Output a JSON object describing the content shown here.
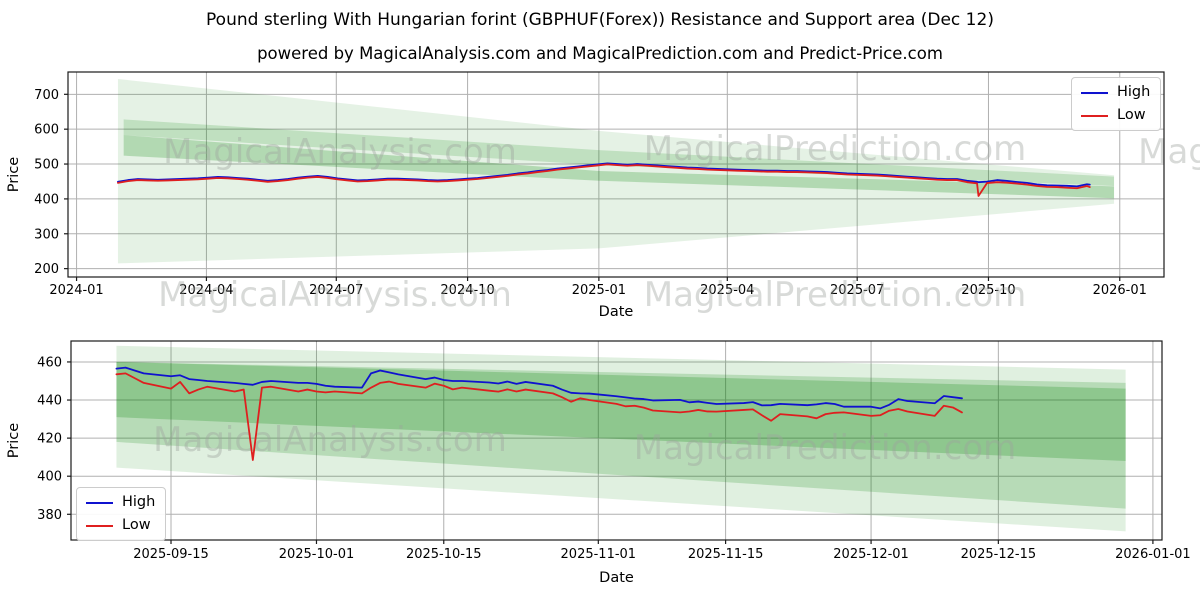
{
  "title": "Pound sterling With Hungarian forint (GBPHUF(Forex)) Resistance and Support area (Dec 12)",
  "subtitle": "powered by MagicalAnalysis.com and MagicalPrediction.com and Predict-Price.com",
  "legend": {
    "high_label": "High",
    "low_label": "Low"
  },
  "colors": {
    "high": "#0f12cf",
    "low": "#df1f1f",
    "band": "#008000",
    "grid": "#b0b0b0",
    "spine": "#1a1a1a",
    "watermark_text": "#9ea39e"
  },
  "watermarks": [
    "MagicalAnalysis.com",
    "MagicalPrediction.com"
  ],
  "chart_data": [
    {
      "type": "line",
      "name": "full-history",
      "xlabel": "Date",
      "ylabel": "Price",
      "xlim": [
        "2023-12-26",
        "2026-02-01"
      ],
      "ylim": [
        176,
        764
      ],
      "grid": true,
      "legend_position": "upper-right",
      "x_ticks": [
        {
          "label": "2024-01",
          "date": "2024-01-01"
        },
        {
          "label": "2024-04",
          "date": "2024-04-01"
        },
        {
          "label": "2024-07",
          "date": "2024-07-01"
        },
        {
          "label": "2024-10",
          "date": "2024-10-01"
        },
        {
          "label": "2025-01",
          "date": "2025-01-01"
        },
        {
          "label": "2025-04",
          "date": "2025-04-01"
        },
        {
          "label": "2025-07",
          "date": "2025-07-01"
        },
        {
          "label": "2025-10",
          "date": "2025-10-01"
        },
        {
          "label": "2026-01",
          "date": "2026-01-01"
        }
      ],
      "y_ticks": [
        200,
        300,
        400,
        500,
        600,
        700
      ],
      "bands": [
        {
          "x": [
            "2024-01-30",
            "2025-01-01",
            "2025-12-28"
          ],
          "top": [
            744,
            595,
            468
          ],
          "bottom": [
            215,
            258,
            386
          ],
          "opacity": 0.1
        },
        {
          "x": [
            "2024-02-03",
            "2025-01-01",
            "2025-12-28"
          ],
          "top": [
            628,
            540,
            464
          ],
          "bottom": [
            583,
            497,
            437
          ],
          "opacity": 0.16
        },
        {
          "x": [
            "2024-02-03",
            "2025-01-01",
            "2025-12-28"
          ],
          "top": [
            583,
            480,
            436
          ],
          "bottom": [
            524,
            452,
            402
          ],
          "opacity": 0.22
        }
      ],
      "dates": [
        "2024-01-30",
        "2024-02-06",
        "2024-02-13",
        "2024-02-20",
        "2024-02-27",
        "2024-03-05",
        "2024-03-12",
        "2024-03-19",
        "2024-03-26",
        "2024-04-02",
        "2024-04-09",
        "2024-04-16",
        "2024-04-23",
        "2024-04-30",
        "2024-05-07",
        "2024-05-14",
        "2024-05-21",
        "2024-05-28",
        "2024-06-04",
        "2024-06-11",
        "2024-06-18",
        "2024-06-25",
        "2024-07-02",
        "2024-07-09",
        "2024-07-16",
        "2024-07-23",
        "2024-07-30",
        "2024-08-06",
        "2024-08-13",
        "2024-08-20",
        "2024-08-27",
        "2024-09-03",
        "2024-09-10",
        "2024-09-17",
        "2024-09-24",
        "2024-10-01",
        "2024-10-08",
        "2024-10-15",
        "2024-10-22",
        "2024-10-29",
        "2024-11-05",
        "2024-11-12",
        "2024-11-19",
        "2024-11-26",
        "2024-12-03",
        "2024-12-10",
        "2024-12-17",
        "2024-12-24",
        "2024-12-31",
        "2025-01-07",
        "2025-01-14",
        "2025-01-21",
        "2025-01-28",
        "2025-02-04",
        "2025-02-11",
        "2025-02-18",
        "2025-02-25",
        "2025-03-04",
        "2025-03-11",
        "2025-03-18",
        "2025-03-25",
        "2025-04-01",
        "2025-04-08",
        "2025-04-15",
        "2025-04-22",
        "2025-04-29",
        "2025-05-06",
        "2025-05-13",
        "2025-05-20",
        "2025-05-27",
        "2025-06-03",
        "2025-06-10",
        "2025-06-17",
        "2025-06-24",
        "2025-07-01",
        "2025-07-08",
        "2025-07-15",
        "2025-07-22",
        "2025-07-29",
        "2025-08-05",
        "2025-08-12",
        "2025-08-19",
        "2025-08-26",
        "2025-09-02",
        "2025-09-09",
        "2025-09-16",
        "2025-09-23",
        "2025-09-24",
        "2025-09-30",
        "2025-10-07",
        "2025-10-14",
        "2025-10-21",
        "2025-10-28",
        "2025-11-04",
        "2025-11-11",
        "2025-11-18",
        "2025-11-25",
        "2025-12-02",
        "2025-12-09",
        "2025-12-11"
      ],
      "series": [
        {
          "name": "High",
          "color": "high",
          "values": [
            449,
            454,
            457,
            456,
            455,
            456,
            457,
            458,
            459,
            461,
            463,
            462,
            460,
            458,
            455,
            452,
            454,
            457,
            461,
            464,
            466,
            463,
            459,
            456,
            453,
            454,
            456,
            458,
            458,
            457,
            456,
            454,
            453,
            454,
            456,
            458,
            460,
            463,
            466,
            469,
            473,
            476,
            480,
            483,
            487,
            490,
            493,
            496,
            499,
            502,
            500,
            498,
            500,
            498,
            496,
            494,
            492,
            490,
            489,
            487,
            486,
            485,
            484,
            483,
            482,
            481,
            481,
            480,
            480,
            479,
            478,
            477,
            475,
            473,
            472,
            471,
            470,
            468,
            466,
            464,
            462,
            460,
            458,
            457,
            457,
            452,
            449,
            448,
            449.5,
            454,
            451.5,
            448.5,
            446,
            441.5,
            439,
            438.5,
            437.5,
            436,
            442,
            441
          ]
        },
        {
          "name": "Low",
          "color": "low",
          "values": [
            446,
            451,
            454,
            453,
            452,
            453,
            454,
            455,
            456,
            458,
            460,
            459,
            457,
            455,
            452,
            449,
            451,
            454,
            458,
            461,
            463,
            460,
            456,
            453,
            450,
            451,
            453,
            455,
            455,
            454,
            453,
            451,
            450,
            451,
            453,
            455,
            457,
            460,
            463,
            466,
            470,
            473,
            477,
            480,
            484,
            487,
            490,
            493,
            496,
            499,
            497,
            495,
            497,
            495,
            493,
            491,
            489,
            487,
            486,
            484,
            483,
            482,
            481,
            480,
            479,
            478,
            478,
            477,
            477,
            476,
            475,
            474,
            472,
            470,
            469,
            468,
            467,
            465,
            463,
            461,
            459,
            457,
            455,
            454,
            454,
            448,
            444.5,
            408.5,
            445.5,
            448,
            446.5,
            444,
            441,
            437,
            434.5,
            434,
            432,
            430.5,
            437,
            434
          ]
        }
      ]
    },
    {
      "type": "line",
      "name": "recent-three-months",
      "xlabel": "Date",
      "ylabel": "Price",
      "xlim": [
        "2025-09-04",
        "2026-01-02"
      ],
      "ylim": [
        366.5,
        471
      ],
      "grid": true,
      "legend_position": "lower-left",
      "x_ticks": [
        {
          "label": "2025-09-15",
          "date": "2025-09-15"
        },
        {
          "label": "2025-10-01",
          "date": "2025-10-01"
        },
        {
          "label": "2025-10-15",
          "date": "2025-10-15"
        },
        {
          "label": "2025-11-01",
          "date": "2025-11-01"
        },
        {
          "label": "2025-11-15",
          "date": "2025-11-15"
        },
        {
          "label": "2025-12-01",
          "date": "2025-12-01"
        },
        {
          "label": "2025-12-15",
          "date": "2025-12-15"
        },
        {
          "label": "2026-01-01",
          "date": "2026-01-01"
        }
      ],
      "y_ticks": [
        380,
        400,
        420,
        440,
        460
      ],
      "bands": [
        {
          "x": [
            "2025-09-09",
            "2025-12-29"
          ],
          "top": [
            468.5,
            456
          ],
          "bottom": [
            404.5,
            371
          ],
          "opacity": 0.12
        },
        {
          "x": [
            "2025-09-09",
            "2025-12-29"
          ],
          "top": [
            460,
            449
          ],
          "bottom": [
            418,
            383
          ],
          "opacity": 0.18
        },
        {
          "x": [
            "2025-09-09",
            "2025-12-29"
          ],
          "top": [
            460,
            446
          ],
          "bottom": [
            431,
            408
          ],
          "opacity": 0.22
        }
      ],
      "dates": [
        "2025-09-09",
        "2025-09-10",
        "2025-09-11",
        "2025-09-12",
        "2025-09-15",
        "2025-09-16",
        "2025-09-17",
        "2025-09-18",
        "2025-09-19",
        "2025-09-22",
        "2025-09-23",
        "2025-09-24",
        "2025-09-25",
        "2025-09-26",
        "2025-09-29",
        "2025-09-30",
        "2025-10-01",
        "2025-10-02",
        "2025-10-03",
        "2025-10-06",
        "2025-10-07",
        "2025-10-08",
        "2025-10-09",
        "2025-10-10",
        "2025-10-13",
        "2025-10-14",
        "2025-10-15",
        "2025-10-16",
        "2025-10-17",
        "2025-10-20",
        "2025-10-21",
        "2025-10-22",
        "2025-10-23",
        "2025-10-24",
        "2025-10-27",
        "2025-10-28",
        "2025-10-29",
        "2025-10-30",
        "2025-10-31",
        "2025-11-03",
        "2025-11-04",
        "2025-11-05",
        "2025-11-06",
        "2025-11-07",
        "2025-11-10",
        "2025-11-11",
        "2025-11-12",
        "2025-11-13",
        "2025-11-14",
        "2025-11-17",
        "2025-11-18",
        "2025-11-19",
        "2025-11-20",
        "2025-11-21",
        "2025-11-24",
        "2025-11-25",
        "2025-11-26",
        "2025-11-27",
        "2025-11-28",
        "2025-12-01",
        "2025-12-02",
        "2025-12-03",
        "2025-12-04",
        "2025-12-05",
        "2025-12-08",
        "2025-12-09",
        "2025-12-10",
        "2025-12-11"
      ],
      "series": [
        {
          "name": "High",
          "color": "high",
          "values": [
            456.5,
            457,
            455.5,
            454,
            452.5,
            453,
            451,
            450.5,
            450,
            449,
            448.5,
            448,
            449.5,
            450,
            449,
            449,
            448.5,
            447.5,
            447,
            446.5,
            454,
            455.5,
            454.5,
            453.5,
            451,
            451.8,
            450.5,
            450,
            450,
            449.2,
            448.7,
            449.7,
            448.5,
            449.5,
            447.5,
            445.5,
            443.8,
            443.5,
            443.4,
            442,
            441.4,
            440.8,
            440.5,
            439.8,
            440.1,
            438.8,
            439.2,
            438.5,
            437.9,
            438.4,
            438.9,
            437.2,
            437.3,
            438,
            437.3,
            437.7,
            438.4,
            437.9,
            436.5,
            436.5,
            435.6,
            437.5,
            440.5,
            439.5,
            438.3,
            442.1,
            441.5,
            440.9
          ]
        },
        {
          "name": "Low",
          "color": "low",
          "values": [
            453.5,
            454,
            451.5,
            449,
            446,
            449.5,
            443.5,
            445.5,
            447,
            444.5,
            445.5,
            408.5,
            446.5,
            447,
            444.5,
            445.5,
            444.5,
            444,
            444.5,
            443.5,
            446.5,
            449,
            449.7,
            448.5,
            446.5,
            448.6,
            447.5,
            445.6,
            446.5,
            444.9,
            444.4,
            445.6,
            444.5,
            445.5,
            443.5,
            441.5,
            439.1,
            440.9,
            440,
            438,
            436.7,
            437,
            436,
            434.5,
            433.5,
            434,
            434.8,
            434,
            433.9,
            434.8,
            435.1,
            432,
            429.1,
            432.6,
            431.4,
            430.4,
            432.6,
            433.3,
            433.5,
            431.7,
            432,
            434.4,
            435.3,
            434,
            431.7,
            437,
            436.1,
            433.5
          ]
        }
      ]
    }
  ]
}
